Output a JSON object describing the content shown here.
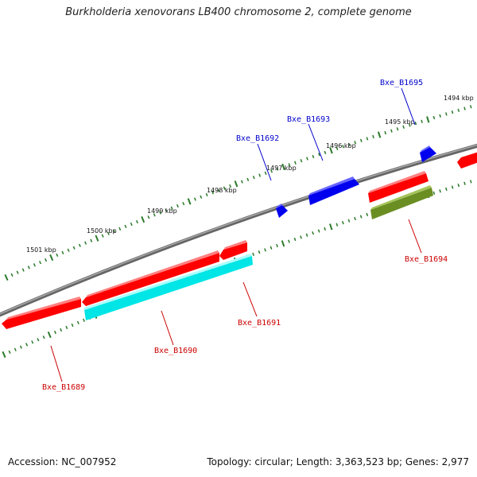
{
  "title": "Burkholderia xenovorans LB400 chromosome 2, complete genome",
  "footer": {
    "accession": "Accession: NC_007952",
    "summary": "Topology: circular; Length: 3,363,523 bp; Genes: 2,977"
  },
  "colors": {
    "backbone": "#808080",
    "tick": "#2a7a2a",
    "forward_gene_label": "#0000cc",
    "reverse_gene_label": "#cc0000"
  },
  "kbp_labels": [
    "1494 kbp",
    "1495 kbp",
    "1496 kbp",
    "1497 kbp",
    "1498 kbp",
    "1499 kbp",
    "1500 kbp",
    "1501 kbp"
  ],
  "genes": [
    {
      "label": "Bxe_B1689",
      "strand": "reverse",
      "color": "#ff0000"
    },
    {
      "label": "Bxe_B1690",
      "strand": "reverse",
      "color": "#00ffff"
    },
    {
      "label": "Bxe_B1691",
      "strand": "reverse",
      "color": "#ff0000"
    },
    {
      "label": "Bxe_B1692",
      "strand": "forward",
      "color": "#0000ff"
    },
    {
      "label": "Bxe_B1693",
      "strand": "forward",
      "color": "#0000ff"
    },
    {
      "label": "Bxe_B1694",
      "strand": "reverse",
      "color": "#6b8e23"
    },
    {
      "label": "Bxe_B1695",
      "strand": "forward",
      "color": "#0000ff"
    }
  ]
}
